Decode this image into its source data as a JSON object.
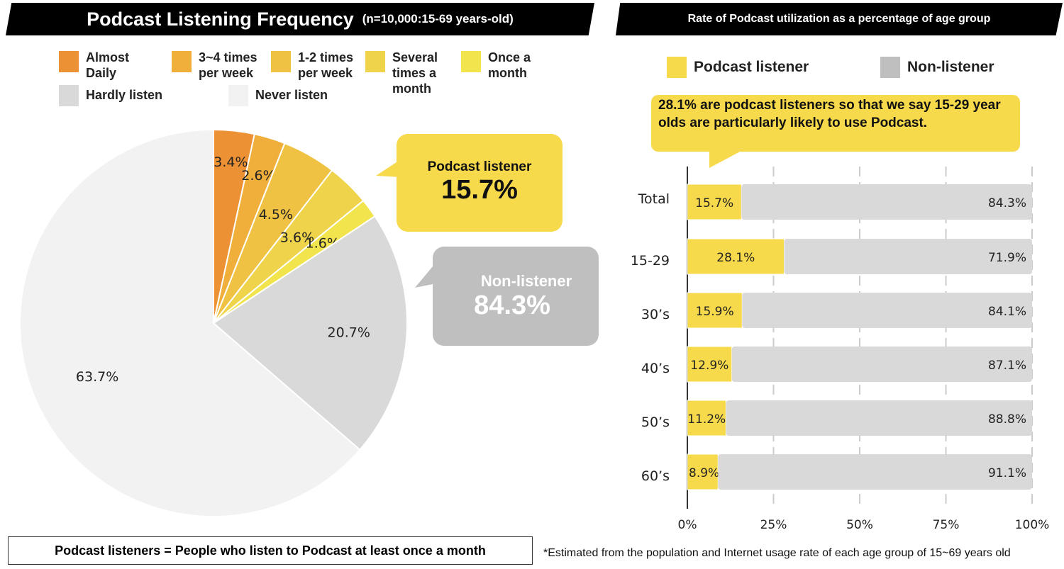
{
  "left": {
    "title": "Podcast Listening Frequency",
    "subtitle": "(n=10,000:15-69 years-old)",
    "listener_bubble": {
      "label": "Podcast listener",
      "value": "15.7%"
    },
    "nonlistener_bubble": {
      "label": "Non-listener",
      "value": "84.3%"
    },
    "note": "Podcast listeners = People who listen to Podcast at least once a month"
  },
  "right": {
    "title": "Rate of Podcast utilization as a percentage of age group",
    "callout": "28.1% are podcast listeners so that we say 15-29 year olds are particularly likely to use Podcast.",
    "footnote": "*Estimated from the population and Internet usage rate of each age group of 15~69 years old"
  },
  "chart_data": [
    {
      "type": "pie",
      "start": "top",
      "direction": "clockwise",
      "slices": [
        {
          "name": "Almost Daily",
          "value": 3.4,
          "label": "3.4%",
          "color": "#ED9135"
        },
        {
          "name": "3~4 times per week",
          "value": 2.6,
          "label": "2.6%",
          "color": "#EFAF3A"
        },
        {
          "name": "1-2 times per week",
          "value": 4.5,
          "label": "4.5%",
          "color": "#F0C243"
        },
        {
          "name": "Several times a month",
          "value": 3.6,
          "label": "3.6%",
          "color": "#EFD34B"
        },
        {
          "name": "Once a month",
          "value": 1.6,
          "label": "1.6%",
          "color": "#F2E44C"
        },
        {
          "name": "Hardly listen",
          "value": 20.7,
          "label": "20.7%",
          "color": "#D9D9D9"
        },
        {
          "name": "Never listen",
          "value": 63.7,
          "label": "63.7%",
          "color": "#F2F2F2"
        }
      ]
    },
    {
      "type": "bar",
      "orientation": "horizontal",
      "stacked": true,
      "categories": [
        "Total",
        "15-29",
        "30’s",
        "40’s",
        "50’s",
        "60’s"
      ],
      "series": [
        {
          "name": "Podcast listener",
          "color": "#F7D94C",
          "values": [
            15.7,
            28.1,
            15.9,
            12.9,
            11.2,
            8.9
          ],
          "labels": [
            "15.7%",
            "28.1%",
            "15.9%",
            "12.9%",
            "11.2%",
            "8.9%"
          ]
        },
        {
          "name": "Non-listener",
          "color": "#D9D9D9",
          "legend_color": "#BFBFBF",
          "values": [
            84.3,
            71.9,
            84.1,
            87.1,
            88.8,
            91.1
          ],
          "labels": [
            "84.3%",
            "71.9%",
            "84.1%",
            "87.1%",
            "88.8%",
            "91.1%"
          ]
        }
      ],
      "xlim": [
        0,
        100
      ],
      "xticks": [
        "0%",
        "25%",
        "50%",
        "75%",
        "100%"
      ],
      "grid": "vertical dashed"
    }
  ]
}
